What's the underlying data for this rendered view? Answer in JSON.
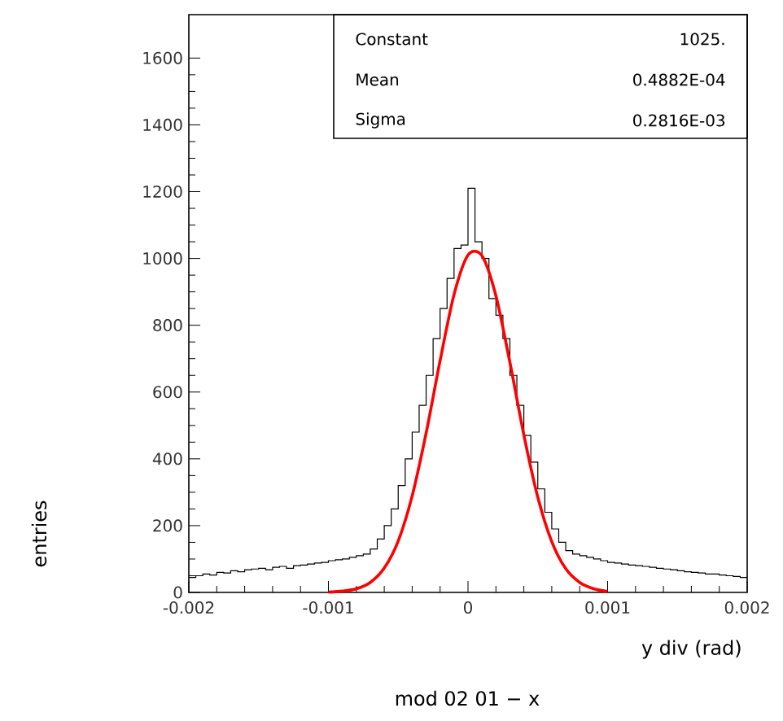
{
  "chart_data": {
    "type": "histogram",
    "title": "mod 02 01 − x",
    "xlabel": "y div (rad)",
    "ylabel": "entries",
    "xlim": [
      -0.002,
      0.002
    ],
    "ylim": [
      0,
      1730
    ],
    "xticks": [
      -0.002,
      -0.001,
      0,
      0.001,
      0.002
    ],
    "yticks": [
      0,
      200,
      400,
      600,
      800,
      1000,
      1200,
      1400,
      1600
    ],
    "annotations": [
      "Constant",
      "1025.",
      "Mean",
      "0.4882E-04",
      "Sigma",
      "0.2816E-03"
    ],
    "series": [
      {
        "color": "#000000",
        "bins": [
          -0.002,
          -0.00195,
          -0.0019,
          -0.00185,
          -0.0018,
          -0.00175,
          -0.0017,
          -0.00165,
          -0.0016,
          -0.00155,
          -0.0015,
          -0.00145,
          -0.0014,
          -0.00135,
          -0.0013,
          -0.00125,
          -0.0012,
          -0.00115,
          -0.0011,
          -0.00105,
          -0.001,
          -0.00095,
          -0.0009,
          -0.00085,
          -0.0008,
          -0.00075,
          -0.0007,
          -0.00065,
          -0.0006,
          -0.00055,
          -0.0005,
          -0.00045,
          -0.0004,
          -0.00035,
          -0.0003,
          -0.00025,
          -0.0002,
          -0.00015,
          -0.0001,
          -5e-05,
          0,
          5e-05,
          0.0001,
          0.00015,
          0.0002,
          0.00025,
          0.0003,
          0.00035,
          0.0004,
          0.00045,
          0.0005,
          0.00055,
          0.0006,
          0.00065,
          0.0007,
          0.00075,
          0.0008,
          0.00085,
          0.0009,
          0.00095,
          0.001,
          0.00105,
          0.0011,
          0.00115,
          0.0012,
          0.00125,
          0.0013,
          0.00135,
          0.0014,
          0.00145,
          0.0015,
          0.00155,
          0.0016,
          0.00165,
          0.0017,
          0.00175,
          0.0018,
          0.00185,
          0.0019,
          0.00195,
          0.002
        ],
        "values": [
          45,
          50,
          55,
          52,
          60,
          58,
          65,
          62,
          68,
          70,
          72,
          68,
          75,
          78,
          72,
          80,
          82,
          85,
          88,
          90,
          95,
          98,
          100,
          105,
          110,
          115,
          130,
          160,
          200,
          250,
          320,
          400,
          480,
          560,
          650,
          760,
          850,
          940,
          1030,
          1040,
          1210,
          1050,
          1000,
          880,
          830,
          760,
          650,
          560,
          470,
          390,
          310,
          240,
          190,
          150,
          125,
          115,
          110,
          105,
          100,
          95,
          90,
          88,
          85,
          82,
          80,
          78,
          75,
          72,
          70,
          68,
          65,
          62,
          60,
          58,
          55,
          55,
          52,
          50,
          48,
          45
        ]
      },
      {
        "type": "line",
        "color": "#ff0000",
        "x": [
          -0.001,
          -0.0009,
          -0.0008,
          -0.0007,
          -0.0006,
          -0.0005,
          -0.0004,
          -0.0003,
          -0.0002,
          -0.0001,
          0,
          0.0001,
          0.0002,
          0.0003,
          0.0004,
          0.0005,
          0.0006,
          0.0007,
          0.0008,
          0.0009,
          0.001
        ],
        "values": [
          1,
          4,
          11,
          30,
          73,
          154,
          289,
          477,
          694,
          892,
          1010,
          1008,
          888,
          689,
          472,
          285,
          152,
          71,
          30,
          11,
          3
        ]
      }
    ]
  }
}
